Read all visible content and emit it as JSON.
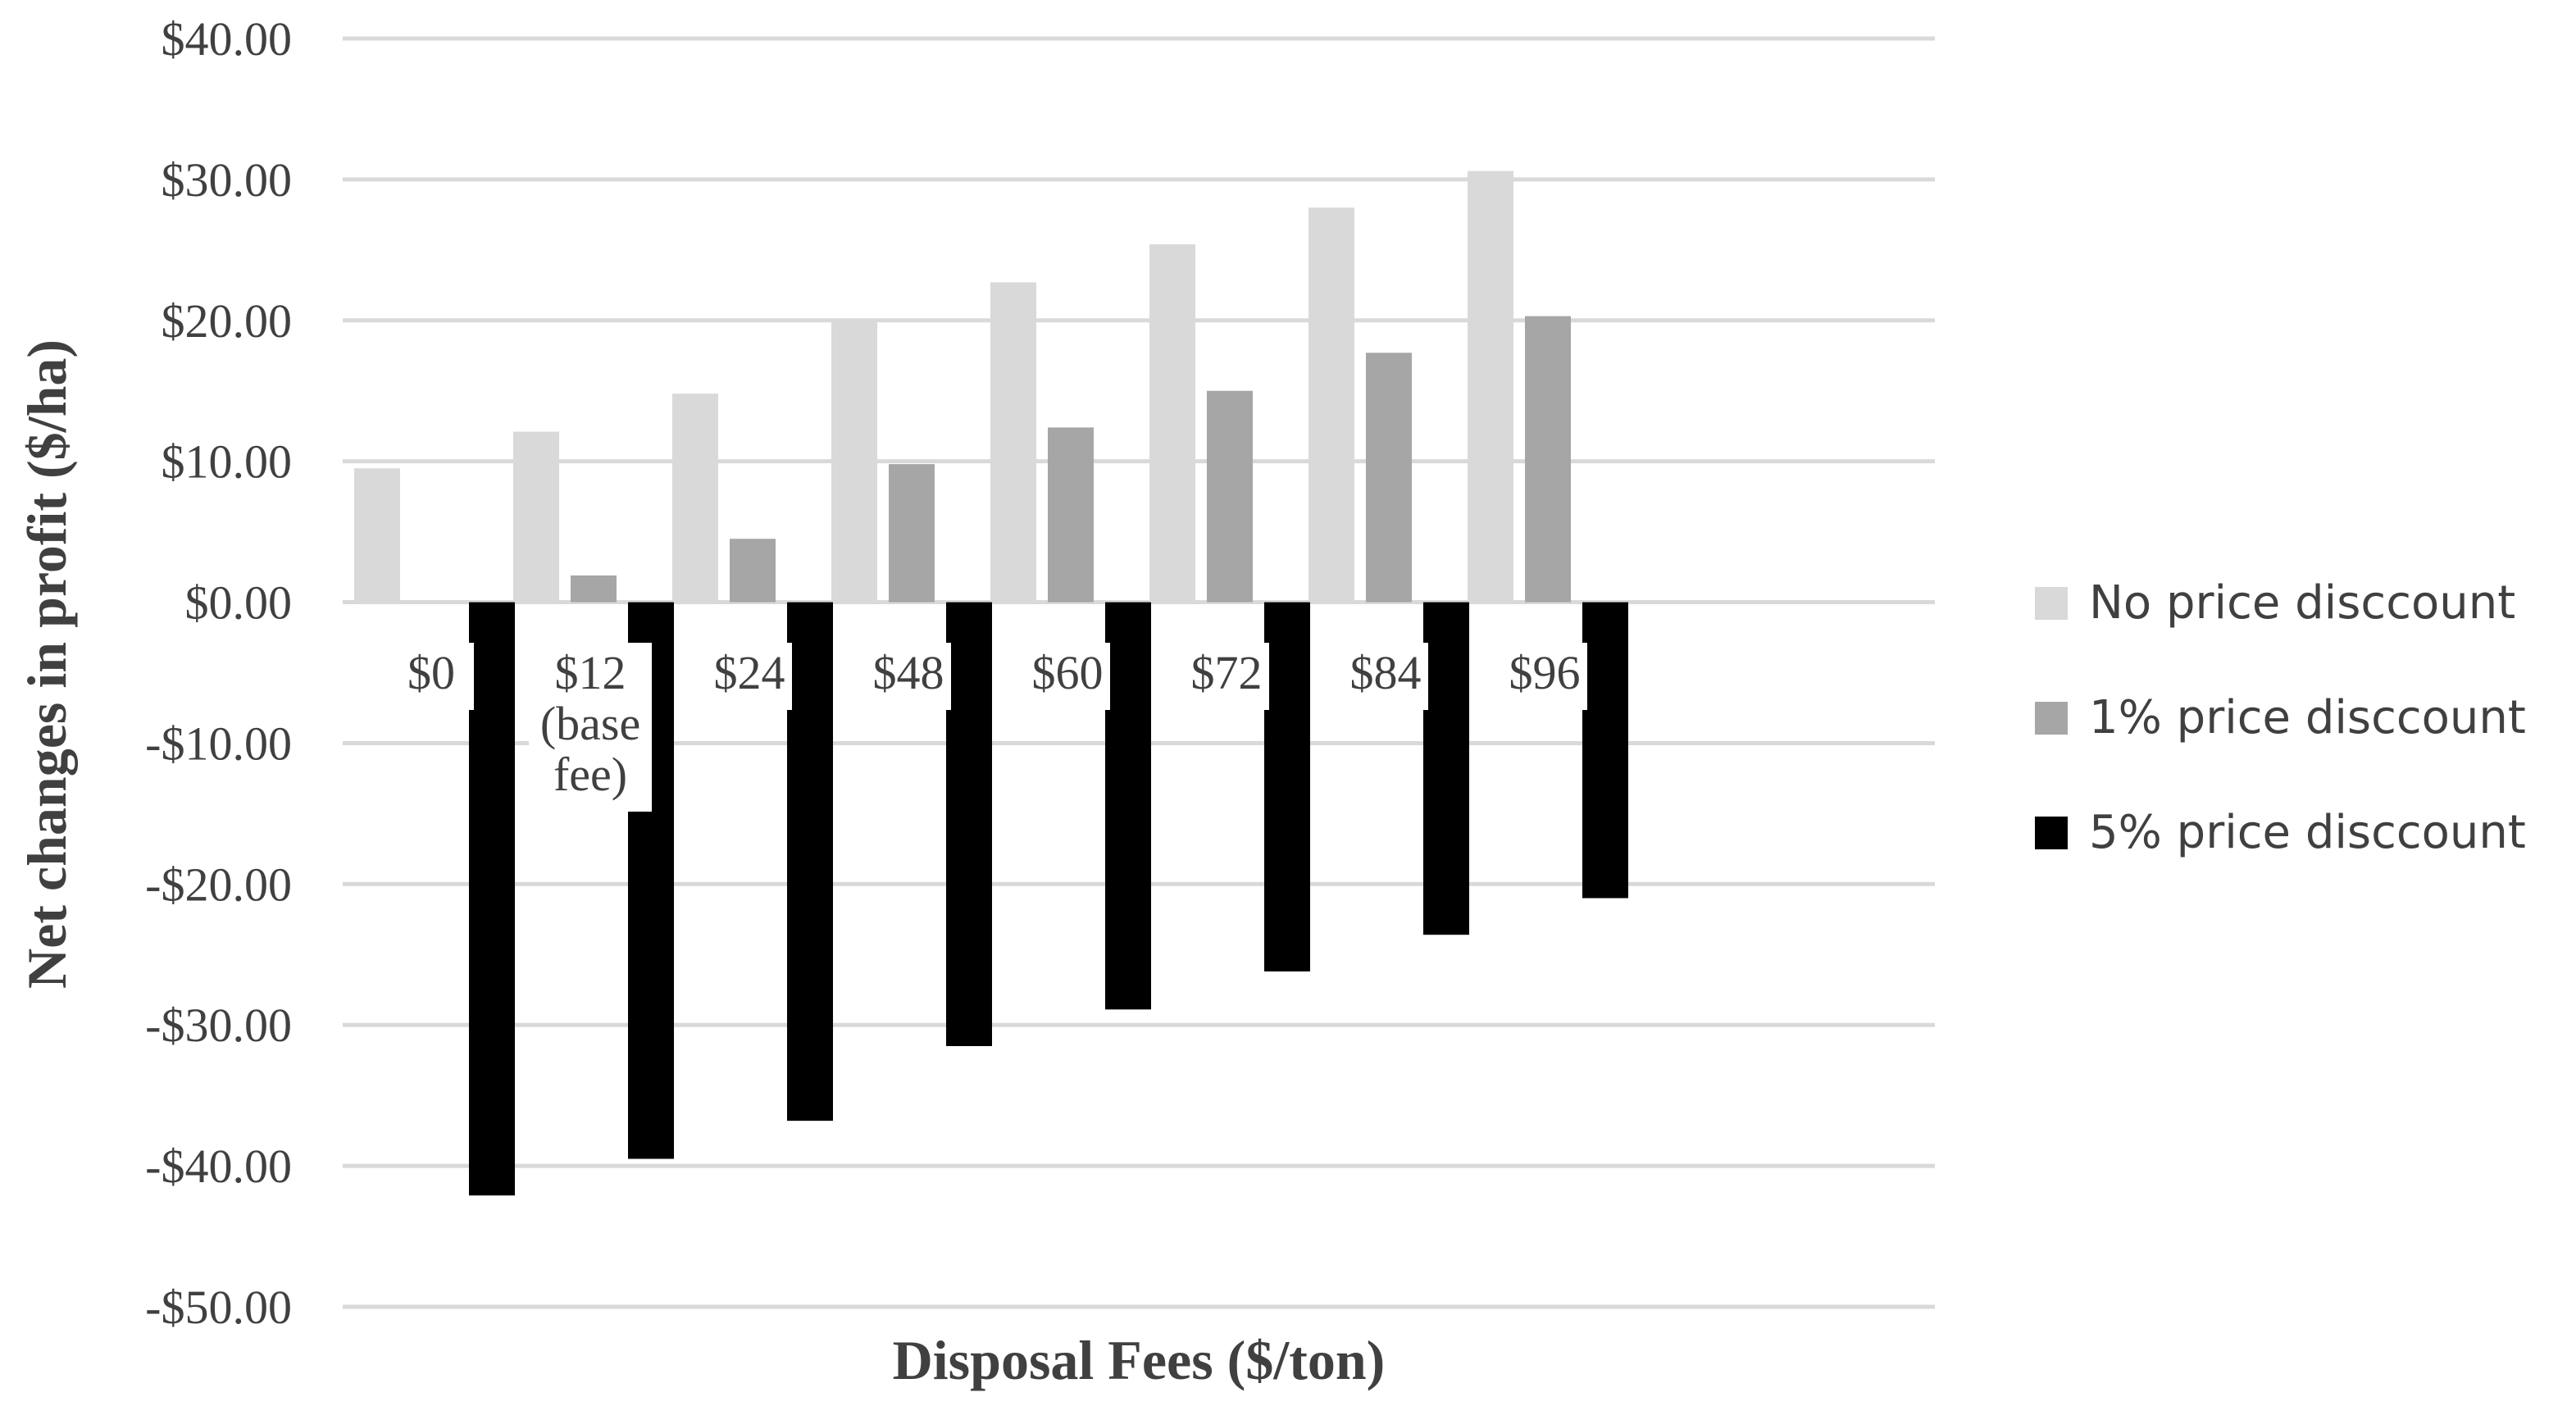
{
  "chart_data": {
    "type": "bar",
    "xlabel": "Disposal Fees ($/ton)",
    "ylabel": "Net changes in profit ($/ha)",
    "ylim": [
      -50,
      40
    ],
    "yticks": [
      40,
      30,
      20,
      10,
      0,
      -10,
      -20,
      -30,
      -40,
      -50
    ],
    "ytick_labels": [
      "$40.00",
      "$30.00",
      "$20.00",
      "$10.00",
      "$0.00",
      "-$10.00",
      "-$20.00",
      "-$30.00",
      "-$40.00",
      "-$50.00"
    ],
    "grid": true,
    "legend_position": "right",
    "categories": [
      [
        "$0"
      ],
      [
        "$12",
        "(base",
        "fee)"
      ],
      [
        "$24"
      ],
      [
        "$48"
      ],
      [
        "$60"
      ],
      [
        "$72"
      ],
      [
        "$84"
      ],
      [
        "$96"
      ]
    ],
    "series": [
      {
        "name": "No price disccount",
        "color": "#d9d9d9",
        "values": [
          9.5,
          12.1,
          14.8,
          20.1,
          22.7,
          25.4,
          28.0,
          30.6
        ]
      },
      {
        "name": "1% price disccount",
        "color": "#a6a6a6",
        "values": [
          0,
          1.9,
          4.5,
          9.8,
          12.4,
          15.0,
          17.7,
          20.3
        ]
      },
      {
        "name": "5% price disccount",
        "color": "#000000",
        "values": [
          -42.1,
          -39.5,
          -36.8,
          -31.5,
          -28.9,
          -26.2,
          -23.6,
          -21.0
        ]
      }
    ]
  }
}
